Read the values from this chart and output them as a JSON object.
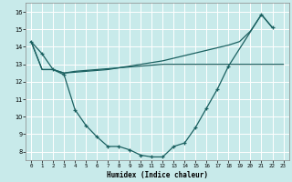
{
  "xlabel": "Humidex (Indice chaleur)",
  "bg_color": "#c8eaea",
  "line_color": "#1a6060",
  "grid_color": "#ffffff",
  "xlim": [
    -0.5,
    23.5
  ],
  "ylim": [
    7.5,
    16.5
  ],
  "ytick_values": [
    8,
    9,
    10,
    11,
    12,
    13,
    14,
    15,
    16
  ],
  "line_rising_x": [
    0,
    1,
    2,
    3,
    4,
    5,
    6,
    7,
    8,
    9,
    10,
    11,
    12,
    13,
    14,
    15,
    16,
    17,
    18,
    19,
    20,
    21,
    22
  ],
  "line_rising_y": [
    14.3,
    12.7,
    12.7,
    12.5,
    12.55,
    12.6,
    12.65,
    12.7,
    12.8,
    12.9,
    13.0,
    13.1,
    13.2,
    13.35,
    13.5,
    13.65,
    13.8,
    13.95,
    14.1,
    14.3,
    14.9,
    15.85,
    15.1
  ],
  "line_flat_x": [
    0,
    1,
    2,
    3,
    4,
    5,
    6,
    7,
    8,
    9,
    10,
    11,
    12,
    13,
    14,
    15,
    16,
    17,
    18,
    19,
    20,
    21,
    22,
    23
  ],
  "line_flat_y": [
    14.3,
    12.7,
    12.7,
    12.5,
    12.6,
    12.65,
    12.7,
    12.75,
    12.8,
    12.85,
    12.9,
    12.95,
    13.0,
    13.0,
    13.0,
    13.0,
    13.0,
    13.0,
    13.0,
    13.0,
    13.0,
    13.0,
    13.0,
    13.0
  ],
  "line_vshaped_x": [
    0,
    1,
    2,
    3,
    4,
    5,
    6,
    7,
    8,
    9,
    10,
    11,
    12,
    13,
    14,
    15,
    16,
    17,
    18,
    21,
    22
  ],
  "line_vshaped_y": [
    14.3,
    13.6,
    12.7,
    12.4,
    10.4,
    9.5,
    8.85,
    8.3,
    8.3,
    8.1,
    7.8,
    7.7,
    7.7,
    8.3,
    8.5,
    9.4,
    10.5,
    11.6,
    12.9,
    15.85,
    15.1
  ]
}
